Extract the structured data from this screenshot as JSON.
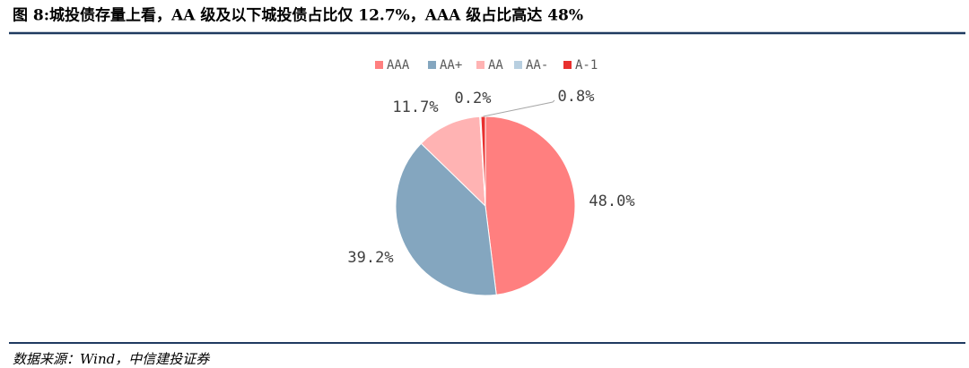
{
  "chart_data": {
    "type": "pie",
    "title": "图 8:城投债存量上看，AA 级及以下城投债占比仅 12.7%，AAA 级占比高达 48%",
    "source": "数据来源：Wind，中信建投证券",
    "categories": [
      "AAA",
      "AA+",
      "AA",
      "AA-",
      "A-1"
    ],
    "values": [
      48.0,
      39.2,
      11.7,
      0.2,
      0.8
    ],
    "value_labels": [
      "48.0%",
      "39.2%",
      "11.7%",
      "0.2%",
      "0.8%"
    ],
    "colors": [
      "#ff7f7f",
      "#84a6bf",
      "#ffb3b3",
      "#b8cfe0",
      "#e8302e"
    ]
  }
}
